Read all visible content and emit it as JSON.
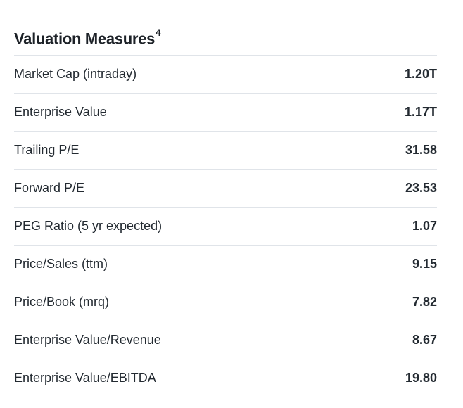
{
  "section": {
    "title": "Valuation Measures",
    "footnote_marker": "4"
  },
  "rows": [
    {
      "label": "Market Cap (intraday)",
      "value": "1.20T"
    },
    {
      "label": "Enterprise Value",
      "value": "1.17T"
    },
    {
      "label": "Trailing P/E",
      "value": "31.58"
    },
    {
      "label": "Forward P/E",
      "value": "23.53"
    },
    {
      "label": "PEG Ratio (5 yr expected)",
      "value": "1.07"
    },
    {
      "label": "Price/Sales (ttm)",
      "value": "9.15"
    },
    {
      "label": "Price/Book (mrq)",
      "value": "7.82"
    },
    {
      "label": "Enterprise Value/Revenue",
      "value": "8.67"
    },
    {
      "label": "Enterprise Value/EBITDA",
      "value": "19.80"
    }
  ]
}
